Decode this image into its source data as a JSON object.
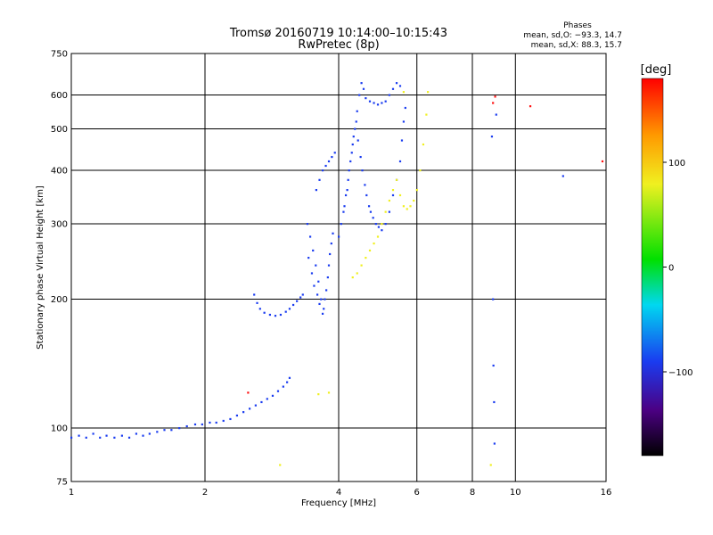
{
  "header": {
    "title_line1": "Tromsø 20160719 10:14:00–10:15:43",
    "title_line2": "RwPretec (8p)",
    "stats_label": "Phases",
    "stats_o": "mean, sd,O: −93.3, 14.7",
    "stats_x": "mean, sd,X:  88.3, 15.7"
  },
  "colorbar": {
    "unit": "[deg]",
    "ticks": [
      {
        "value": 100,
        "label": "100"
      },
      {
        "value": 0,
        "label": "0"
      },
      {
        "value": -100,
        "label": "−100"
      }
    ],
    "range": [
      -180,
      180
    ]
  },
  "chart_data": {
    "type": "scatter",
    "xlabel": "Frequency [MHz]",
    "ylabel": "Stationary phase Virtual Height [km]",
    "xscale": "log",
    "yscale": "log",
    "xlim": [
      1,
      16
    ],
    "ylim": [
      75,
      750
    ],
    "grid": true,
    "x_ticks": [
      {
        "value": 1,
        "label": "1"
      },
      {
        "value": 2,
        "label": "2"
      },
      {
        "value": 4,
        "label": "4"
      },
      {
        "value": 6,
        "label": "6"
      },
      {
        "value": 8,
        "label": "8"
      },
      {
        "value": 10,
        "label": "10"
      },
      {
        "value": 16,
        "label": "16"
      }
    ],
    "y_ticks": [
      {
        "value": 75,
        "label": "75"
      },
      {
        "value": 100,
        "label": "100"
      },
      {
        "value": 200,
        "label": "200"
      },
      {
        "value": 300,
        "label": "300"
      },
      {
        "value": 400,
        "label": "400"
      },
      {
        "value": 500,
        "label": "500"
      },
      {
        "value": 600,
        "label": "600"
      },
      {
        "value": 750,
        "label": "750"
      }
    ],
    "series": [
      {
        "color": "#1a3cf0",
        "points": [
          [
            1.0,
            95
          ],
          [
            1.04,
            96
          ],
          [
            1.08,
            95
          ],
          [
            1.12,
            97
          ],
          [
            1.16,
            95
          ],
          [
            1.2,
            96
          ],
          [
            1.25,
            95
          ],
          [
            1.3,
            96
          ],
          [
            1.35,
            95
          ],
          [
            1.4,
            97
          ],
          [
            1.45,
            96
          ],
          [
            1.5,
            97
          ],
          [
            1.56,
            98
          ],
          [
            1.62,
            99
          ],
          [
            1.68,
            99
          ],
          [
            1.75,
            100
          ],
          [
            1.82,
            101
          ],
          [
            1.9,
            102
          ],
          [
            1.97,
            102
          ],
          [
            2.05,
            103
          ],
          [
            2.12,
            103
          ],
          [
            2.2,
            104
          ],
          [
            2.28,
            105
          ],
          [
            2.36,
            107
          ],
          [
            2.44,
            109
          ],
          [
            2.52,
            111
          ],
          [
            2.6,
            113
          ],
          [
            2.68,
            115
          ],
          [
            2.76,
            117
          ],
          [
            2.84,
            119
          ],
          [
            2.92,
            122
          ],
          [
            3.0,
            125
          ],
          [
            3.06,
            128
          ],
          [
            3.1,
            131
          ],
          [
            2.58,
            205
          ],
          [
            2.62,
            196
          ],
          [
            2.66,
            190
          ],
          [
            2.72,
            186
          ],
          [
            2.8,
            184
          ],
          [
            2.88,
            183
          ],
          [
            2.96,
            184
          ],
          [
            3.04,
            187
          ],
          [
            3.1,
            190
          ],
          [
            3.16,
            194
          ],
          [
            3.22,
            198
          ],
          [
            3.28,
            202
          ],
          [
            3.32,
            205
          ],
          [
            3.4,
            300
          ],
          [
            3.45,
            280
          ],
          [
            3.5,
            260
          ],
          [
            3.55,
            240
          ],
          [
            3.6,
            220
          ],
          [
            3.65,
            200
          ],
          [
            3.7,
            190
          ],
          [
            3.75,
            210
          ],
          [
            3.8,
            240
          ],
          [
            3.85,
            270
          ],
          [
            3.42,
            250
          ],
          [
            3.48,
            230
          ],
          [
            3.52,
            215
          ],
          [
            3.58,
            205
          ],
          [
            3.62,
            195
          ],
          [
            3.68,
            185
          ],
          [
            3.72,
            200
          ],
          [
            3.78,
            225
          ],
          [
            3.82,
            255
          ],
          [
            3.88,
            285
          ],
          [
            3.56,
            360
          ],
          [
            3.62,
            380
          ],
          [
            3.68,
            400
          ],
          [
            3.74,
            410
          ],
          [
            3.8,
            420
          ],
          [
            3.86,
            430
          ],
          [
            3.92,
            440
          ],
          [
            4.0,
            280
          ],
          [
            4.05,
            300
          ],
          [
            4.1,
            320
          ],
          [
            4.15,
            350
          ],
          [
            4.2,
            380
          ],
          [
            4.25,
            420
          ],
          [
            4.3,
            460
          ],
          [
            4.35,
            500
          ],
          [
            4.4,
            550
          ],
          [
            4.45,
            600
          ],
          [
            4.5,
            640
          ],
          [
            4.55,
            620
          ],
          [
            4.6,
            590
          ],
          [
            4.7,
            580
          ],
          [
            4.8,
            575
          ],
          [
            4.9,
            570
          ],
          [
            5.0,
            575
          ],
          [
            5.1,
            580
          ],
          [
            5.2,
            600
          ],
          [
            5.3,
            620
          ],
          [
            5.4,
            640
          ],
          [
            5.5,
            630
          ],
          [
            4.12,
            330
          ],
          [
            4.18,
            360
          ],
          [
            4.22,
            400
          ],
          [
            4.28,
            440
          ],
          [
            4.32,
            480
          ],
          [
            4.38,
            520
          ],
          [
            4.42,
            470
          ],
          [
            4.48,
            430
          ],
          [
            4.52,
            400
          ],
          [
            4.58,
            370
          ],
          [
            4.62,
            350
          ],
          [
            4.68,
            330
          ],
          [
            4.72,
            320
          ],
          [
            4.78,
            310
          ],
          [
            4.85,
            300
          ],
          [
            4.92,
            295
          ],
          [
            5.0,
            290
          ],
          [
            5.1,
            300
          ],
          [
            5.2,
            320
          ],
          [
            5.3,
            350
          ],
          [
            5.4,
            380
          ],
          [
            5.5,
            420
          ],
          [
            5.55,
            470
          ],
          [
            5.6,
            520
          ],
          [
            5.65,
            560
          ],
          [
            8.85,
            480
          ],
          [
            8.9,
            200
          ],
          [
            8.92,
            140
          ],
          [
            8.95,
            115
          ],
          [
            8.97,
            92
          ],
          [
            9.05,
            540
          ],
          [
            12.8,
            388
          ]
        ]
      },
      {
        "color": "#f0f020",
        "points": [
          [
            4.3,
            225
          ],
          [
            4.4,
            230
          ],
          [
            4.5,
            240
          ],
          [
            4.6,
            250
          ],
          [
            4.7,
            260
          ],
          [
            4.8,
            270
          ],
          [
            4.9,
            280
          ],
          [
            5.0,
            300
          ],
          [
            5.1,
            320
          ],
          [
            5.2,
            340
          ],
          [
            5.3,
            360
          ],
          [
            5.4,
            380
          ],
          [
            5.5,
            350
          ],
          [
            5.6,
            330
          ],
          [
            5.7,
            325
          ],
          [
            5.8,
            330
          ],
          [
            5.9,
            340
          ],
          [
            6.0,
            360
          ],
          [
            6.1,
            400
          ],
          [
            6.2,
            460
          ],
          [
            6.3,
            540
          ],
          [
            6.35,
            610
          ],
          [
            5.6,
            610
          ],
          [
            3.6,
            120
          ],
          [
            3.8,
            121
          ],
          [
            2.95,
            82
          ],
          [
            8.8,
            82
          ]
        ]
      },
      {
        "color": "#ff1010",
        "points": [
          [
            2.5,
            121
          ],
          [
            8.9,
            575
          ],
          [
            9.0,
            595
          ],
          [
            10.8,
            565
          ],
          [
            15.7,
            420
          ]
        ]
      }
    ]
  }
}
